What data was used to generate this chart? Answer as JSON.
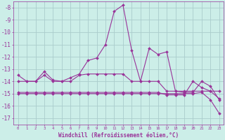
{
  "xlabel": "Windchill (Refroidissement éolien,°C)",
  "background_color": "#cceee8",
  "grid_color": "#aacccc",
  "line_color": "#993399",
  "hours": [
    0,
    1,
    2,
    3,
    4,
    5,
    6,
    7,
    8,
    9,
    10,
    11,
    12,
    13,
    14,
    15,
    16,
    17,
    18,
    19,
    20,
    21,
    22,
    23
  ],
  "line1": [
    -13.5,
    -14.0,
    -14.0,
    -13.2,
    -13.9,
    -14.0,
    -13.7,
    -13.4,
    -12.3,
    -12.1,
    -11.0,
    -8.3,
    -7.8,
    -11.5,
    -14.0,
    -11.3,
    -11.8,
    -11.6,
    -14.8,
    -14.9,
    -14.9,
    -14.0,
    -14.4,
    -15.5
  ],
  "line2": [
    -14.0,
    -14.0,
    -14.0,
    -13.5,
    -14.0,
    -14.0,
    -14.0,
    -13.5,
    -13.4,
    -13.4,
    -13.4,
    -13.4,
    -13.4,
    -14.0,
    -14.0,
    -14.0,
    -14.0,
    -14.8,
    -14.8,
    -14.8,
    -14.8,
    -14.8,
    -14.8,
    -14.8
  ],
  "line3": [
    -15.0,
    -15.0,
    -15.0,
    -15.0,
    -15.0,
    -15.0,
    -15.0,
    -15.0,
    -15.0,
    -15.0,
    -15.0,
    -15.0,
    -15.0,
    -15.0,
    -15.0,
    -15.0,
    -15.0,
    -15.0,
    -15.0,
    -15.0,
    -15.0,
    -14.9,
    -15.5,
    -16.6
  ],
  "line4": [
    -14.9,
    -14.9,
    -14.9,
    -14.9,
    -14.9,
    -14.9,
    -14.9,
    -14.9,
    -14.9,
    -14.9,
    -14.9,
    -14.9,
    -14.9,
    -14.9,
    -14.9,
    -14.9,
    -14.9,
    -15.1,
    -15.1,
    -15.1,
    -14.0,
    -14.5,
    -14.8,
    -15.4
  ],
  "ylim": [
    -17.5,
    -7.5
  ],
  "yticks": [
    -17,
    -16,
    -15,
    -14,
    -13,
    -12,
    -11,
    -10,
    -9,
    -8
  ],
  "xlim": [
    -0.5,
    23.5
  ],
  "xtick_labels": [
    "0",
    "1",
    "2",
    "3",
    "4",
    "5",
    "6",
    "7",
    "8",
    "9",
    "10",
    "11",
    "12",
    "13",
    "14",
    "15",
    "16",
    "17",
    "18",
    "19",
    "20",
    "21",
    "22",
    "23"
  ]
}
